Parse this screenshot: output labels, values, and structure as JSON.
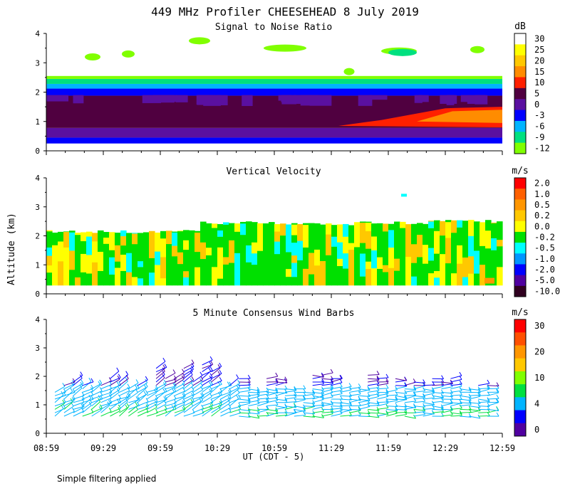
{
  "title": "449 MHz Profiler CHEESEHEAD  8 July 2019",
  "footnote": "Simple filtering applied",
  "chart_data": [
    {
      "type": "heatmap",
      "title": "Signal to Noise Ratio",
      "ylabel": "Altitude (km)",
      "xlabel": "UT  (CDT - 5)",
      "ylim": [
        0,
        4
      ],
      "yticks": [
        "0",
        "1",
        "2",
        "3",
        "4"
      ],
      "x_ticks": [
        "08:59",
        "09:29",
        "09:59",
        "10:29",
        "10:59",
        "11:29",
        "11:59",
        "12:29",
        "12:59"
      ],
      "colorbar_unit": "dB",
      "colorbar_labels": [
        "30",
        "25",
        "20",
        "15",
        "10",
        "5",
        "0",
        "-3",
        "-6",
        "-9",
        "-12"
      ],
      "colorbar_colors": [
        "#ffffff",
        "#ffff00",
        "#ffc800",
        "#ff8c00",
        "#ff2000",
        "#500040",
        "#5a10a0",
        "#0000ff",
        "#00b4ff",
        "#00e080",
        "#80ff00"
      ],
      "description_layers": [
        {
          "bottom_km": 0.25,
          "top_km": 0.45,
          "value": -3
        },
        {
          "bottom_km": 0.45,
          "top_km": 0.75,
          "value": 0
        },
        {
          "bottom_km": 0.75,
          "top_km": 1.9,
          "value": 5
        },
        {
          "bottom_km": 1.9,
          "top_km": 2.15,
          "value": -3
        },
        {
          "bottom_km": 2.15,
          "top_km": 2.3,
          "value": -6
        },
        {
          "bottom_km": 2.3,
          "top_km": 2.45,
          "value": -9
        },
        {
          "bottom_km": 2.45,
          "top_km": 2.55,
          "value": -12
        }
      ]
    },
    {
      "type": "heatmap",
      "title": "Vertical Velocity",
      "ylim": [
        0,
        4
      ],
      "yticks": [
        "0",
        "1",
        "2",
        "3",
        "4"
      ],
      "colorbar_unit": "m/s",
      "colorbar_labels": [
        "2.0",
        "1.0",
        "0.5",
        "0.2",
        "0.0",
        "-0.2",
        "-0.5",
        "-1.0",
        "-2.0",
        "-5.0",
        "-10.0"
      ],
      "colorbar_colors": [
        "#ff0000",
        "#ff6000",
        "#ff9600",
        "#ffc800",
        "#ffff00",
        "#00e000",
        "#00ffff",
        "#0096ff",
        "#0000ff",
        "#5000a0",
        "#300020"
      ],
      "data_top_km": [
        2.2,
        2.25,
        2.5,
        2.5,
        2.5,
        2.55
      ]
    },
    {
      "type": "scatter",
      "title": "5 Minute Consensus Wind Barbs",
      "ylim": [
        0,
        4
      ],
      "yticks": [
        "0",
        "1",
        "2",
        "3",
        "4"
      ],
      "colorbar_unit": "m/s",
      "colorbar_labels": [
        "30",
        "20",
        "10",
        "4",
        "0"
      ],
      "colorbar_colors": [
        "#ff0000",
        "#ff5000",
        "#ff9600",
        "#ffc800",
        "#80ff00",
        "#00e040",
        "#00b4ff",
        "#0000ff",
        "#5000a0"
      ],
      "barb_levels_km": [
        0.6,
        0.8,
        1.0,
        1.2,
        1.4,
        1.6,
        1.8
      ]
    }
  ]
}
